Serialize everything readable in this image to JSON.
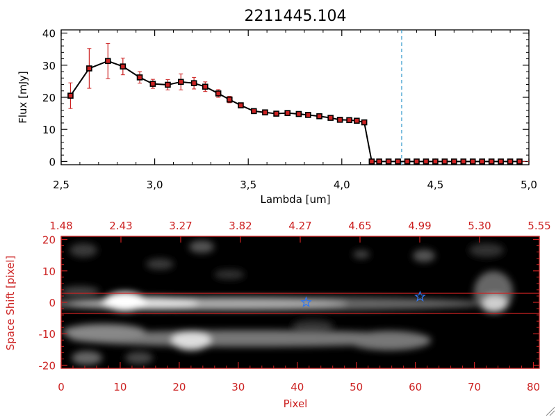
{
  "chart_data": [
    {
      "type": "line",
      "title": "2211445.104",
      "xlabel": "Lambda [um]",
      "ylabel": "Flux [mJy]",
      "xlim": [
        2.5,
        5.0
      ],
      "ylim": [
        -1,
        41
      ],
      "x_ticks": [
        "2.5",
        "3.0",
        "3.5",
        "4.0",
        "4.5",
        "5.0"
      ],
      "y_ticks": [
        "0",
        "10",
        "20",
        "30",
        "40"
      ],
      "reference_line_x": 4.32,
      "x": [
        2.55,
        2.65,
        2.75,
        2.83,
        2.92,
        2.99,
        3.07,
        3.14,
        3.21,
        3.27,
        3.34,
        3.4,
        3.46,
        3.53,
        3.59,
        3.65,
        3.71,
        3.77,
        3.82,
        3.88,
        3.94,
        3.99,
        4.04,
        4.08,
        4.12,
        4.16,
        4.2,
        4.25,
        4.3,
        4.35,
        4.4,
        4.45,
        4.5,
        4.55,
        4.6,
        4.65,
        4.7,
        4.75,
        4.8,
        4.85,
        4.9,
        4.95
      ],
      "values": [
        20.5,
        29.0,
        31.3,
        29.6,
        26.2,
        24.2,
        23.9,
        24.8,
        24.4,
        23.3,
        21.2,
        19.3,
        17.5,
        15.7,
        15.3,
        14.9,
        15.1,
        14.8,
        14.5,
        14.1,
        13.6,
        13.0,
        12.9,
        12.7,
        12.2,
        0,
        0,
        0,
        0,
        0,
        0,
        0,
        0,
        0,
        0,
        0,
        0,
        0,
        0,
        0,
        0,
        0
      ],
      "errors": [
        4.0,
        6.2,
        5.5,
        2.6,
        1.8,
        1.4,
        1.6,
        2.5,
        1.8,
        1.5,
        1.2,
        1.0,
        0.6,
        0.4,
        0.3,
        0.3,
        0.3,
        0.3,
        0.3,
        0.3,
        0.3,
        0.3,
        0.3,
        0.3,
        0.3,
        0,
        0,
        0,
        0,
        0,
        0,
        0,
        0,
        0,
        0,
        0,
        0,
        0,
        0,
        0,
        0,
        0
      ],
      "colors": {
        "line": "#000000",
        "marker": "#cc2222",
        "error_bar": "#cc2222",
        "reference_line": "#3399cc"
      }
    },
    {
      "type": "heatmap",
      "xlabel": "Pixel",
      "ylabel": "Space Shift [pixel]",
      "xlim": [
        0,
        81
      ],
      "ylim": [
        -21,
        21
      ],
      "x_ticks": [
        "0",
        "10",
        "20",
        "30",
        "40",
        "50",
        "60",
        "70",
        "80"
      ],
      "y_ticks": [
        "-20",
        "-10",
        "0",
        "10",
        "20"
      ],
      "top_axis_ticks": [
        "1.48",
        "2.43",
        "3.27",
        "3.82",
        "4.27",
        "4.65",
        "4.99",
        "5.30",
        "5.55"
      ],
      "aperture_lines_y": [
        -3,
        3
      ],
      "star_markers": [
        {
          "x": 41.5,
          "y": 0
        },
        {
          "x": 60.8,
          "y": 1.8
        }
      ],
      "colors": {
        "axes": "#cc2222",
        "star": "#3377ee"
      }
    }
  ]
}
